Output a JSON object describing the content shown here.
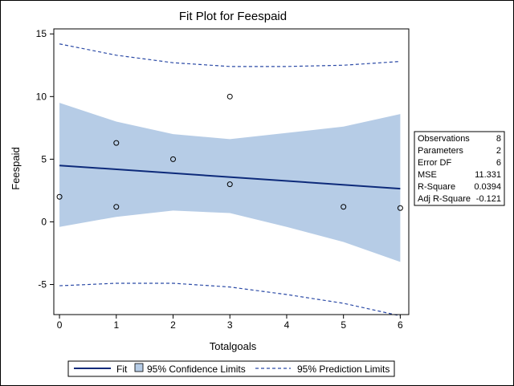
{
  "chart_data": {
    "type": "scatter",
    "title": "Fit Plot for Feespaid",
    "xlabel": "Totalgoals",
    "ylabel": "Feespaid",
    "xlim": [
      -0.1,
      6.15
    ],
    "ylim": [
      -7.4,
      15.4
    ],
    "xticks": [
      0,
      1,
      2,
      3,
      4,
      5,
      6
    ],
    "yticks": [
      -5,
      0,
      5,
      10,
      15
    ],
    "grid": false,
    "legend_position": "bottom",
    "colors": {
      "fit": "#0d2a7a",
      "confidence_fill": "#b6cce6",
      "prediction": "#2b4aa6",
      "points": "#000000"
    },
    "points": {
      "x": [
        0,
        1,
        1,
        2,
        3,
        3,
        5,
        6
      ],
      "y": [
        2.0,
        6.3,
        1.2,
        5.0,
        10.0,
        3.0,
        1.2,
        1.1
      ]
    },
    "fit_line": {
      "x": [
        0,
        6
      ],
      "y": [
        4.5,
        2.65
      ]
    },
    "confidence_limits": {
      "x": [
        0,
        1,
        2,
        3,
        4,
        5,
        6
      ],
      "upper": [
        9.5,
        8.0,
        7.0,
        6.6,
        7.1,
        7.6,
        8.6
      ],
      "lower": [
        -0.4,
        0.4,
        0.9,
        0.7,
        -0.4,
        -1.6,
        -3.2
      ]
    },
    "prediction_limits": {
      "x": [
        0,
        1,
        2,
        3,
        4,
        5,
        6
      ],
      "upper": [
        14.2,
        13.3,
        12.7,
        12.4,
        12.4,
        12.5,
        12.8
      ],
      "lower": [
        -5.1,
        -4.9,
        -4.9,
        -5.2,
        -5.8,
        -6.5,
        -7.5
      ]
    },
    "stats": [
      {
        "label": "Observations",
        "value": "8"
      },
      {
        "label": "Parameters",
        "value": "2"
      },
      {
        "label": "Error DF",
        "value": "6"
      },
      {
        "label": "MSE",
        "value": "11.331"
      },
      {
        "label": "R-Square",
        "value": "0.0394"
      },
      {
        "label": "Adj R-Square",
        "value": "-0.121"
      }
    ],
    "legend": [
      {
        "label": "Fit",
        "style": "line"
      },
      {
        "label": "95% Confidence Limits",
        "style": "fill"
      },
      {
        "label": "95% Prediction Limits",
        "style": "dashed"
      }
    ]
  }
}
